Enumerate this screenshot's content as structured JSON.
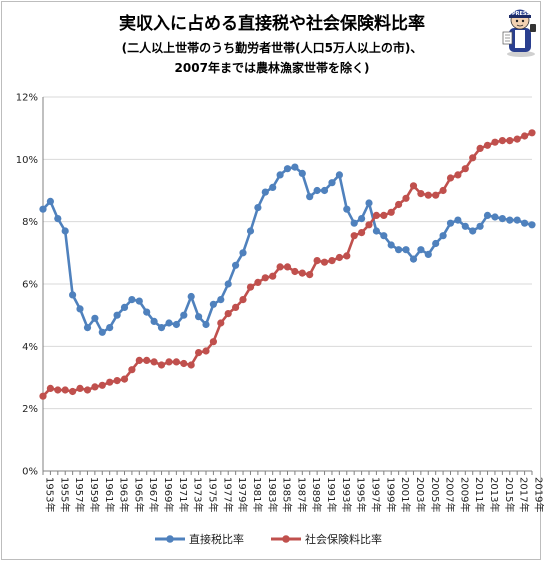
{
  "chart_data": {
    "type": "line",
    "title": "実収入に占める直接税や社会保険料比率",
    "subtitle_lines": [
      "(二人以上世帯のうち勤労者世帯(人口5万人以上の市)、",
      "2007年までは農林漁家世帯を除く)"
    ],
    "xlabel": "",
    "ylabel": "",
    "ylim": [
      0,
      12
    ],
    "y_ticks": [
      "0%",
      "2%",
      "4%",
      "6%",
      "8%",
      "10%",
      "12%"
    ],
    "y_tick_values": [
      0,
      2,
      4,
      6,
      8,
      10,
      12
    ],
    "x_tick_labels": [
      "1953年",
      "1955年",
      "1957年",
      "1959年",
      "1961年",
      "1963年",
      "1965年",
      "1967年",
      "1969年",
      "1971年",
      "1973年",
      "1975年",
      "1977年",
      "1979年",
      "1981年",
      "1983年",
      "1985年",
      "1987年",
      "1989年",
      "1991年",
      "1993年",
      "1995年",
      "1997年",
      "1999年",
      "2001年",
      "2003年",
      "2005年",
      "2007年",
      "2009年",
      "2011年",
      "2013年",
      "2015年",
      "2017年",
      "2019年"
    ],
    "grid": true,
    "legend_position": "bottom",
    "x": [
      1953,
      1954,
      1955,
      1956,
      1957,
      1958,
      1959,
      1960,
      1961,
      1962,
      1963,
      1964,
      1965,
      1966,
      1967,
      1968,
      1969,
      1970,
      1971,
      1972,
      1973,
      1974,
      1975,
      1976,
      1977,
      1978,
      1979,
      1980,
      1981,
      1982,
      1983,
      1984,
      1985,
      1986,
      1987,
      1988,
      1989,
      1990,
      1991,
      1992,
      1993,
      1994,
      1995,
      1996,
      1997,
      1998,
      1999,
      2000,
      2001,
      2002,
      2003,
      2004,
      2005,
      2006,
      2007,
      2008,
      2009,
      2010,
      2011,
      2012,
      2013,
      2014,
      2015,
      2016,
      2017,
      2018,
      2019
    ],
    "series": [
      {
        "name": "直接税比率",
        "color": "#4f81bd",
        "values": [
          8.4,
          8.65,
          8.1,
          7.7,
          5.65,
          5.2,
          4.6,
          4.9,
          4.45,
          4.6,
          5.0,
          5.25,
          5.5,
          5.45,
          5.1,
          4.8,
          4.6,
          4.75,
          4.7,
          5.0,
          5.6,
          4.95,
          4.7,
          5.35,
          5.5,
          6.0,
          6.6,
          7.0,
          7.7,
          8.45,
          8.95,
          9.1,
          9.5,
          9.7,
          9.75,
          9.55,
          8.8,
          9.0,
          9.0,
          9.25,
          9.5,
          8.4,
          7.95,
          8.1,
          8.6,
          7.7,
          7.55,
          7.25,
          7.1,
          7.1,
          6.8,
          7.1,
          6.95,
          7.3,
          7.55,
          7.95,
          8.05,
          7.85,
          7.7,
          7.85,
          8.2,
          8.15,
          8.1,
          8.05,
          8.05,
          7.95,
          7.9
        ]
      },
      {
        "name": "社会保険料比率",
        "color": "#c0504d",
        "values": [
          2.4,
          2.65,
          2.6,
          2.6,
          2.55,
          2.65,
          2.6,
          2.7,
          2.75,
          2.85,
          2.9,
          2.95,
          3.25,
          3.55,
          3.55,
          3.5,
          3.4,
          3.5,
          3.5,
          3.45,
          3.4,
          3.8,
          3.85,
          4.15,
          4.75,
          5.05,
          5.25,
          5.5,
          5.9,
          6.05,
          6.2,
          6.25,
          6.55,
          6.55,
          6.4,
          6.35,
          6.3,
          6.75,
          6.7,
          6.75,
          6.85,
          6.9,
          7.55,
          7.65,
          7.9,
          8.2,
          8.2,
          8.3,
          8.55,
          8.75,
          9.15,
          8.9,
          8.85,
          8.85,
          9.0,
          9.4,
          9.5,
          9.7,
          10.05,
          10.35,
          10.45,
          10.55,
          10.6,
          10.6,
          10.65,
          10.75,
          10.85
        ]
      }
    ]
  },
  "mascot": {
    "icon": "reporter-mascot-icon",
    "badge_text": "PRESS"
  },
  "colors": {
    "grid": "#d9d9d9",
    "axis": "#808080",
    "frame": "#bdbdbd"
  }
}
